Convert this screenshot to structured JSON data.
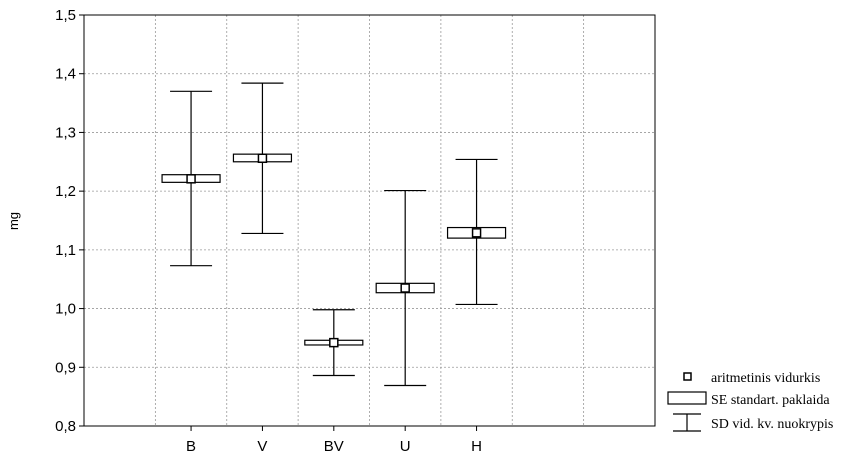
{
  "chart_data": {
    "type": "box",
    "title": "",
    "xlabel": "",
    "ylabel": "mg",
    "ylim": [
      0.8,
      1.5
    ],
    "yticks": [
      0.8,
      0.9,
      1.0,
      1.1,
      1.2,
      1.3,
      1.4,
      1.5
    ],
    "ytick_labels": [
      "0,8",
      "0,9",
      "1,0",
      "1,1",
      "1,2",
      "1,3",
      "1,4",
      "1,5"
    ],
    "grid": true,
    "categories": [
      "B",
      "V",
      "BV",
      "U",
      "H"
    ],
    "mean": [
      1.221,
      1.256,
      0.942,
      1.035,
      1.129
    ],
    "se_low": [
      1.215,
      1.25,
      0.938,
      1.027,
      1.12
    ],
    "se_high": [
      1.228,
      1.263,
      0.946,
      1.043,
      1.138
    ],
    "sd_low": [
      1.073,
      1.128,
      0.886,
      0.869,
      1.007
    ],
    "sd_high": [
      1.37,
      1.384,
      0.998,
      1.201,
      1.254
    ],
    "legend": {
      "position": "bottom-right",
      "entries": [
        {
          "marker": "square",
          "label": "aritmetinis vidurkis"
        },
        {
          "marker": "box",
          "label": "SE standart. paklaida"
        },
        {
          "marker": "whisker",
          "label": "SD vid. kv. nuokrypis"
        }
      ]
    }
  }
}
